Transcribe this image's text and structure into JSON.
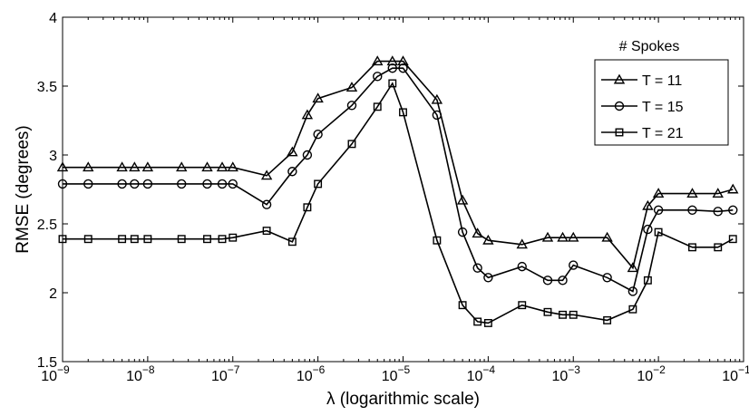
{
  "chart_data": {
    "type": "line",
    "title": "",
    "xlabel": "λ (logarithmic scale)",
    "ylabel": "RMSE (degrees)",
    "xscale": "log",
    "xlim": [
      1e-09,
      0.1
    ],
    "ylim": [
      1.5,
      4
    ],
    "xticks": [
      {
        "value": 1e-09,
        "base": "10",
        "exp": "−9"
      },
      {
        "value": 1e-08,
        "base": "10",
        "exp": "−8"
      },
      {
        "value": 1e-07,
        "base": "10",
        "exp": "−7"
      },
      {
        "value": 1e-06,
        "base": "10",
        "exp": "−6"
      },
      {
        "value": 1e-05,
        "base": "10",
        "exp": "−5"
      },
      {
        "value": 0.0001,
        "base": "10",
        "exp": "−4"
      },
      {
        "value": 0.001,
        "base": "10",
        "exp": "−3"
      },
      {
        "value": 0.01,
        "base": "10",
        "exp": "−2"
      },
      {
        "value": 0.1,
        "base": "10",
        "exp": "−1"
      }
    ],
    "yticks": [
      {
        "value": 1.5,
        "label": "1.5"
      },
      {
        "value": 2,
        "label": "2"
      },
      {
        "value": 2.5,
        "label": "2.5"
      },
      {
        "value": 3,
        "label": "3"
      },
      {
        "value": 3.5,
        "label": "3.5"
      },
      {
        "value": 4,
        "label": "4"
      }
    ],
    "grid": false,
    "legend": {
      "title": "# Spokes",
      "position": "top-right"
    },
    "series": [
      {
        "name": "T = 11",
        "marker": "triangle",
        "x": [
          1e-09,
          2e-09,
          5e-09,
          7e-09,
          1e-08,
          2.5e-08,
          5e-08,
          7.5e-08,
          1e-07,
          2.5e-07,
          5e-07,
          7.5e-07,
          1e-06,
          2.5e-06,
          5e-06,
          7.5e-06,
          1e-05,
          2.5e-05,
          5e-05,
          7.5e-05,
          0.0001,
          0.00025,
          0.0005,
          0.00075,
          0.001,
          0.0025,
          0.005,
          0.0075,
          0.01,
          0.025,
          0.05,
          0.075
        ],
        "y": [
          2.91,
          2.91,
          2.91,
          2.91,
          2.91,
          2.91,
          2.91,
          2.91,
          2.91,
          2.85,
          3.02,
          3.29,
          3.41,
          3.49,
          3.68,
          3.68,
          3.68,
          3.4,
          2.67,
          2.43,
          2.38,
          2.35,
          2.4,
          2.4,
          2.4,
          2.4,
          2.18,
          2.63,
          2.72,
          2.72,
          2.72,
          2.75
        ]
      },
      {
        "name": "T = 15",
        "marker": "circle",
        "x": [
          1e-09,
          2e-09,
          5e-09,
          7e-09,
          1e-08,
          2.5e-08,
          5e-08,
          7.5e-08,
          1e-07,
          2.5e-07,
          5e-07,
          7.5e-07,
          1e-06,
          2.5e-06,
          5e-06,
          7.5e-06,
          1e-05,
          2.5e-05,
          5e-05,
          7.5e-05,
          0.0001,
          0.00025,
          0.0005,
          0.00075,
          0.001,
          0.0025,
          0.005,
          0.0075,
          0.01,
          0.025,
          0.05,
          0.075
        ],
        "y": [
          2.79,
          2.79,
          2.79,
          2.79,
          2.79,
          2.79,
          2.79,
          2.79,
          2.79,
          2.64,
          2.88,
          3.0,
          3.15,
          3.36,
          3.57,
          3.63,
          3.63,
          3.29,
          2.44,
          2.18,
          2.11,
          2.19,
          2.09,
          2.09,
          2.2,
          2.11,
          2.01,
          2.46,
          2.6,
          2.6,
          2.59,
          2.6
        ]
      },
      {
        "name": "T = 21",
        "marker": "square",
        "x": [
          1e-09,
          2e-09,
          5e-09,
          7e-09,
          1e-08,
          2.5e-08,
          5e-08,
          7.5e-08,
          1e-07,
          2.5e-07,
          5e-07,
          7.5e-07,
          1e-06,
          2.5e-06,
          5e-06,
          7.5e-06,
          1e-05,
          2.5e-05,
          5e-05,
          7.5e-05,
          0.0001,
          0.00025,
          0.0005,
          0.00075,
          0.001,
          0.0025,
          0.005,
          0.0075,
          0.01,
          0.025,
          0.05,
          0.075
        ],
        "y": [
          2.39,
          2.39,
          2.39,
          2.39,
          2.39,
          2.39,
          2.39,
          2.39,
          2.4,
          2.45,
          2.37,
          2.62,
          2.79,
          3.08,
          3.35,
          3.52,
          3.31,
          2.38,
          1.91,
          1.79,
          1.78,
          1.91,
          1.86,
          1.84,
          1.84,
          1.8,
          1.88,
          2.09,
          2.44,
          2.33,
          2.33,
          2.39
        ]
      }
    ]
  }
}
